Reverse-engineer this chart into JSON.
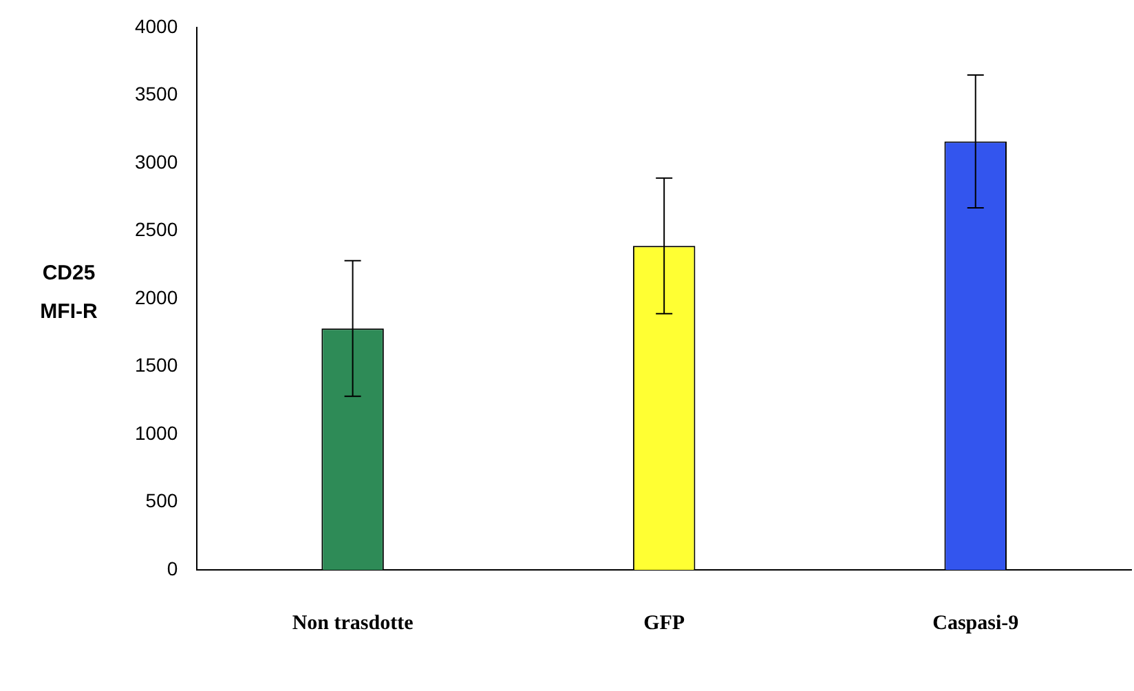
{
  "chart_data": {
    "type": "bar",
    "ylabel": "CD25\nMFI-R",
    "categories": [
      "Non trasdotte",
      "GFP",
      "Caspasi-9"
    ],
    "values": [
      1780,
      2390,
      3160
    ],
    "colors": [
      "#2e8b57",
      "#ffff33",
      "#3355ee"
    ],
    "errors": [
      500,
      500,
      490
    ],
    "ylim": [
      0,
      4000
    ],
    "yticks": [
      0,
      500,
      1000,
      1500,
      2000,
      2500,
      3000,
      3500,
      4000
    ],
    "grid": false,
    "legend": false
  }
}
